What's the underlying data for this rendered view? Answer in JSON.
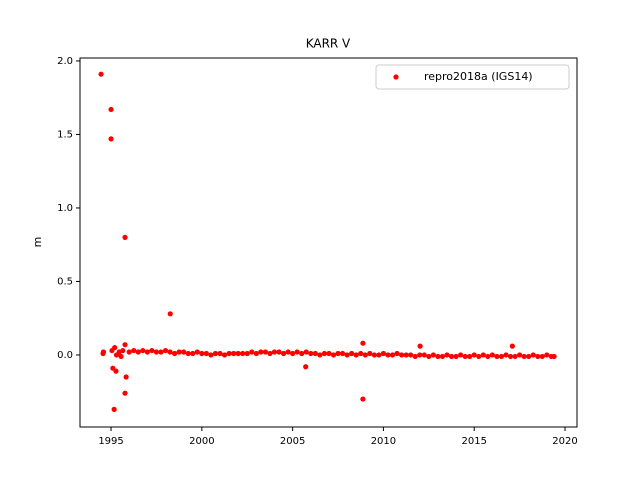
{
  "chart_data": {
    "type": "scatter",
    "title": "KARR V",
    "ylabel": "m",
    "xlim": [
      1993.29,
      2020.66
    ],
    "ylim": [
      -0.49,
      2.02
    ],
    "xticks": [
      1995,
      2000,
      2005,
      2010,
      2015,
      2020
    ],
    "yticks": [
      {
        "value": 0,
        "label": "0.0"
      },
      {
        "value": 0.5,
        "label": "0.5"
      },
      {
        "value": 1,
        "label": "1.0"
      },
      {
        "value": 1.5,
        "label": "1.5"
      },
      {
        "value": 2,
        "label": "2.0"
      }
    ],
    "legend_loc": "upper right",
    "series": [
      {
        "name": "repro2018a (IGS14)",
        "color": "#ff0000",
        "x": [
          1994.45,
          1995.0,
          1995.0,
          1995.77,
          1998.26,
          1995.77,
          2005.72,
          2008.87,
          2008.87,
          2012.02,
          2017.1,
          1995.17,
          1995.77,
          1995.83,
          1995.1,
          1995.27,
          1994.56,
          1994.58,
          1995.05,
          1995.2,
          1995.3,
          1995.45,
          1995.55,
          1995.65,
          1996.0,
          1996.25,
          1996.5,
          1996.75,
          1997.0,
          1997.25,
          1997.5,
          1997.75,
          1998.0,
          1998.25,
          1998.5,
          1998.75,
          1999.0,
          1999.25,
          1999.5,
          1999.75,
          2000.0,
          2000.25,
          2000.5,
          2000.75,
          2001.0,
          2001.25,
          2001.5,
          2001.75,
          2002.0,
          2002.25,
          2002.5,
          2002.75,
          2003.0,
          2003.25,
          2003.5,
          2003.75,
          2004.0,
          2004.25,
          2004.5,
          2004.75,
          2005.0,
          2005.25,
          2005.5,
          2005.75,
          2006.0,
          2006.25,
          2006.5,
          2006.75,
          2007.0,
          2007.25,
          2007.5,
          2007.75,
          2008.0,
          2008.25,
          2008.5,
          2008.75,
          2009.0,
          2009.25,
          2009.5,
          2009.75,
          2010.0,
          2010.25,
          2010.5,
          2010.75,
          2011.0,
          2011.25,
          2011.5,
          2011.75,
          2012.0,
          2012.25,
          2012.5,
          2012.75,
          2013.0,
          2013.25,
          2013.5,
          2013.75,
          2014.0,
          2014.25,
          2014.5,
          2014.75,
          2015.0,
          2015.25,
          2015.5,
          2015.75,
          2016.0,
          2016.25,
          2016.5,
          2016.75,
          2017.0,
          2017.25,
          2017.5,
          2017.75,
          2018.0,
          2018.25,
          2018.5,
          2018.75,
          2019.0,
          2019.25,
          2019.4
        ],
        "values": [
          1.91,
          1.67,
          1.47,
          0.8,
          0.28,
          0.07,
          -0.08,
          0.08,
          -0.3,
          0.06,
          0.06,
          -0.37,
          -0.26,
          -0.15,
          -0.09,
          -0.11,
          0.01,
          0.02,
          0.03,
          0.05,
          0.0,
          0.02,
          -0.01,
          0.03,
          0.02,
          0.03,
          0.02,
          0.03,
          0.02,
          0.03,
          0.02,
          0.02,
          0.03,
          0.02,
          0.01,
          0.02,
          0.02,
          0.01,
          0.01,
          0.02,
          0.01,
          0.01,
          0.0,
          0.01,
          0.01,
          0.0,
          0.01,
          0.01,
          0.01,
          0.01,
          0.01,
          0.02,
          0.01,
          0.02,
          0.02,
          0.01,
          0.02,
          0.02,
          0.01,
          0.02,
          0.01,
          0.02,
          0.01,
          0.02,
          0.01,
          0.01,
          0.0,
          0.01,
          0.01,
          0.0,
          0.01,
          0.01,
          0.0,
          0.01,
          0.0,
          0.01,
          0.0,
          0.01,
          0.0,
          0.0,
          0.01,
          0.0,
          0.0,
          0.01,
          0.0,
          0.0,
          0.0,
          -0.01,
          0.0,
          0.0,
          -0.01,
          0.0,
          -0.01,
          -0.01,
          0.0,
          -0.01,
          -0.01,
          0.0,
          -0.01,
          -0.01,
          0.0,
          -0.01,
          0.0,
          -0.01,
          0.0,
          -0.01,
          -0.01,
          0.0,
          -0.01,
          -0.01,
          0.0,
          -0.01,
          -0.01,
          0.0,
          -0.01,
          -0.01,
          0.0,
          -0.01,
          -0.01
        ]
      }
    ]
  }
}
